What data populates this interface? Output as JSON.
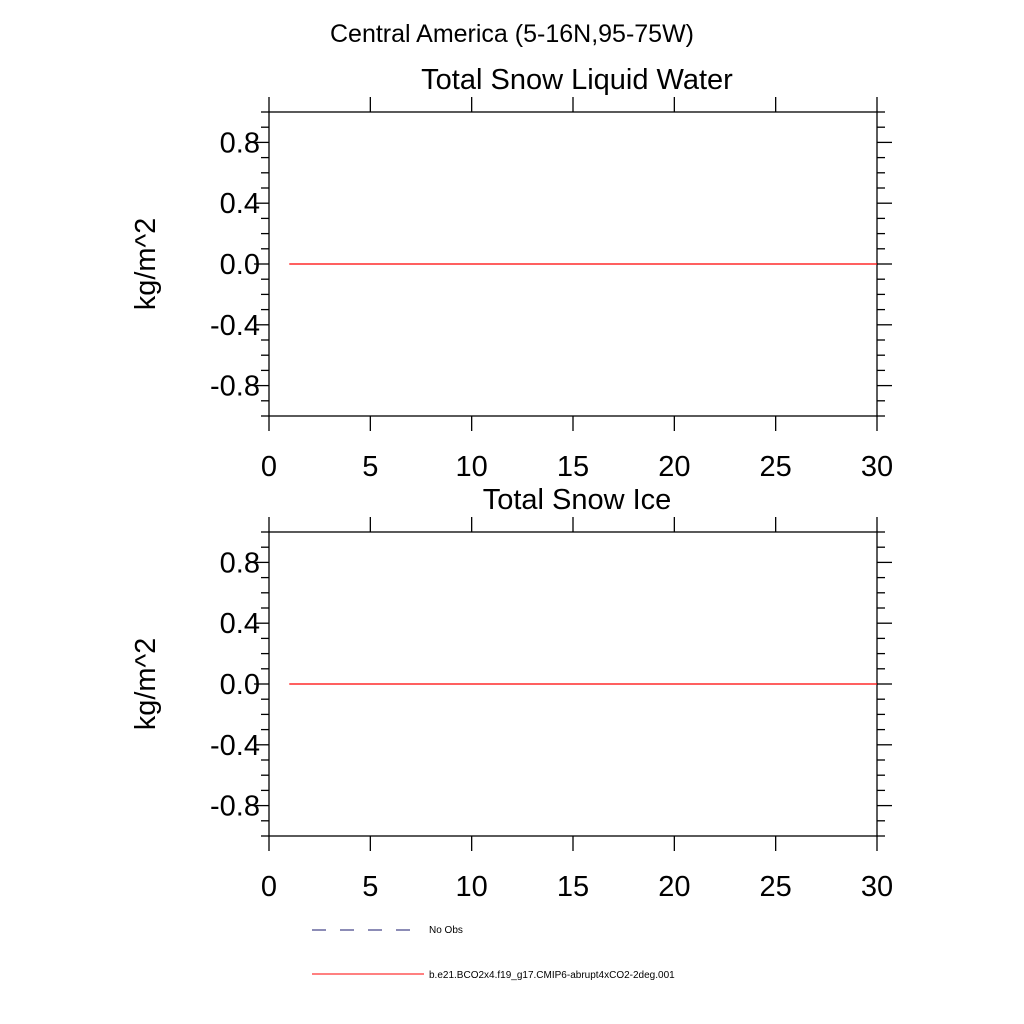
{
  "figure_title": "Central America (5-16N,95-75W)",
  "chart_data": [
    {
      "type": "line",
      "title": "Total Snow Liquid Water",
      "xlabel": "",
      "ylabel": "kg/m^2",
      "xlim": [
        0,
        30
      ],
      "ylim": [
        -1,
        1
      ],
      "x_ticks": [
        "0",
        "5",
        "10",
        "15",
        "20",
        "25",
        "30"
      ],
      "y_ticks": [
        "0.8",
        "0.4",
        "0.0",
        "-0.4",
        "-0.8"
      ],
      "grid": false,
      "series": [
        {
          "name": "b.e21.BCO2x4.f19_g17.CMIP6-abrupt4xCO2-2deg.001",
          "color": "#ff0000",
          "x": [
            1,
            30
          ],
          "y": [
            0,
            0
          ]
        }
      ]
    },
    {
      "type": "line",
      "title": "Total Snow Ice",
      "xlabel": "",
      "ylabel": "kg/m^2",
      "xlim": [
        0,
        30
      ],
      "ylim": [
        -1,
        1
      ],
      "x_ticks": [
        "0",
        "5",
        "10",
        "15",
        "20",
        "25",
        "30"
      ],
      "y_ticks": [
        "0.8",
        "0.4",
        "0.0",
        "-0.4",
        "-0.8"
      ],
      "grid": false,
      "series": [
        {
          "name": "b.e21.BCO2x4.f19_g17.CMIP6-abrupt4xCO2-2deg.001",
          "color": "#ff0000",
          "x": [
            1,
            30
          ],
          "y": [
            0,
            0
          ]
        }
      ]
    }
  ],
  "legend": {
    "placement": "bottom",
    "entries": [
      {
        "label": "No Obs",
        "color": "#1a1a6e",
        "style": "dashed"
      },
      {
        "label": "b.e21.BCO2x4.f19_g17.CMIP6-abrupt4xCO2-2deg.001",
        "color": "#ff0000",
        "style": "solid"
      }
    ]
  }
}
